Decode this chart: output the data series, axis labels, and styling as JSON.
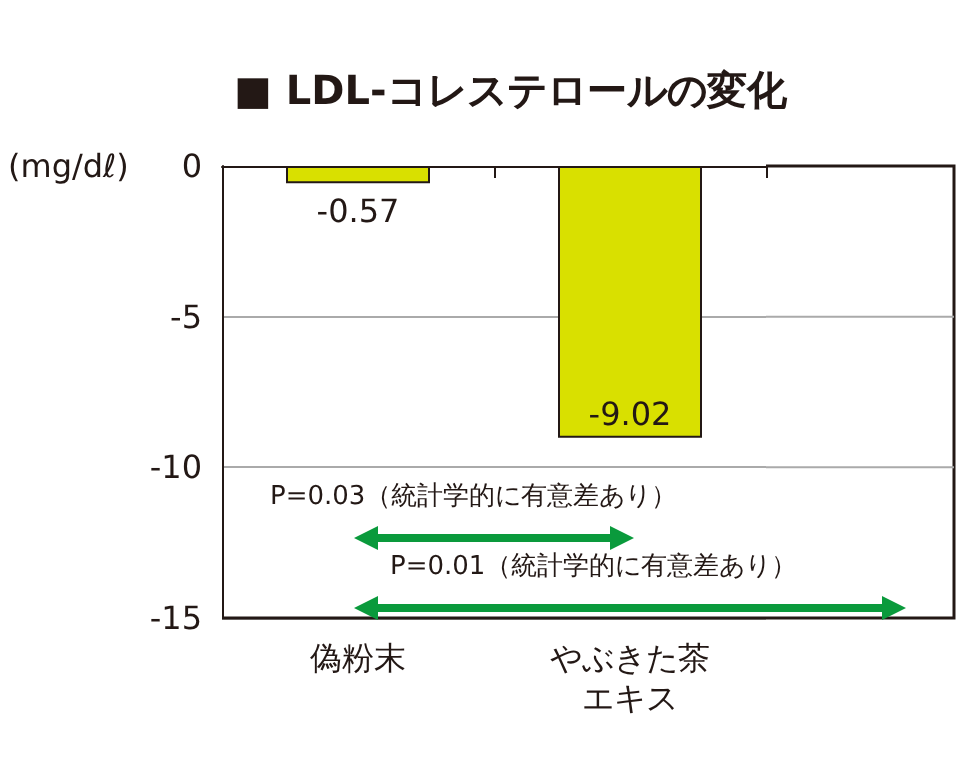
{
  "chart_data": {
    "type": "bar",
    "title": "■ LDL-コレステロールの変化",
    "ylabel": "(mg/dℓ)",
    "categories": [
      "偽粉末",
      "やぶきた茶エキス"
    ],
    "values": [
      -0.57,
      -9.02
    ],
    "color": "#d9e000",
    "ylim": [
      -15,
      0
    ],
    "yticks": [
      -15,
      -10,
      -5,
      0
    ],
    "grid": "y",
    "data_labels": true,
    "annotations": [
      "P=0.03（統計学的に有意差あり）",
      "P=0.01（統計学的に有意差あり）"
    ]
  }
}
